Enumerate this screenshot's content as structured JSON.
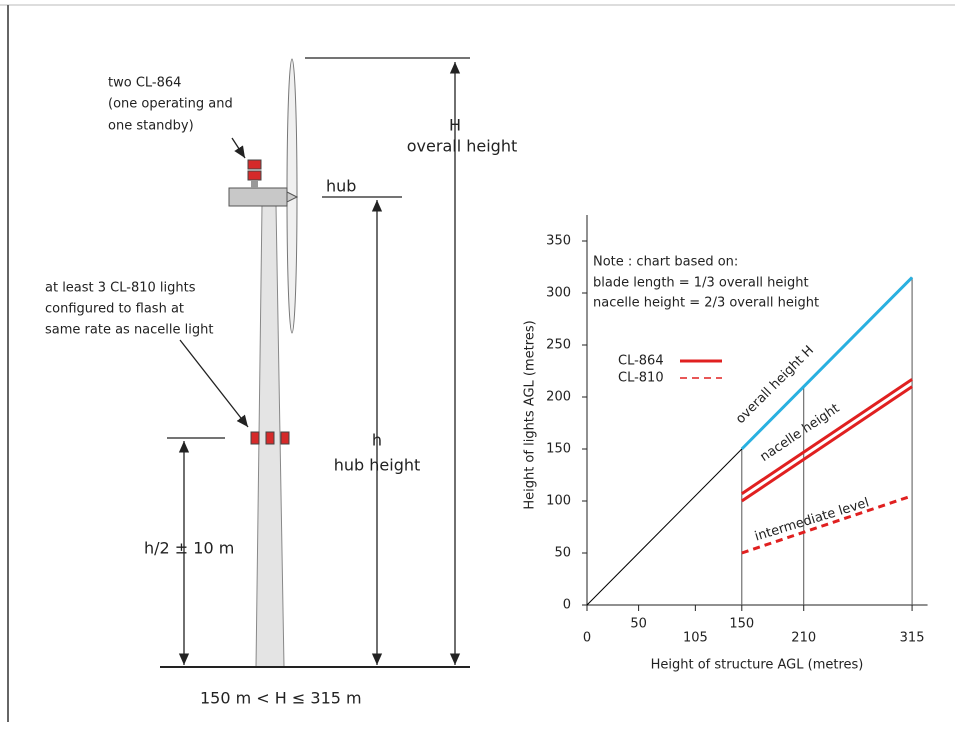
{
  "diagram": {
    "nacelle_light_label": [
      "two CL-864",
      "(one operating and",
      "one standby)"
    ],
    "tower_light_label": [
      "at least 3 CL-810 lights",
      "configured to flash at",
      "same rate as nacelle light"
    ],
    "hub_label": "hub",
    "overall_symbol": "H",
    "overall_label": "overall height",
    "hub_symbol": "h",
    "hub_height_label": "hub height",
    "half_label": "h/2 ± 10 m",
    "range_label": "150 m < H ≤ 315 m"
  },
  "chart_data": {
    "type": "line",
    "xlabel": "Height of structure AGL (metres)",
    "ylabel": "Height of lights AGL (metres)",
    "note": [
      "Note : chart based on:",
      "blade length = 1/3 overall height",
      "nacelle height = 2/3 overall height"
    ],
    "annotations": [
      "overall height  H",
      "nacelle height",
      "intermediate level"
    ],
    "xlim": [
      0,
      330
    ],
    "ylim": [
      0,
      375
    ],
    "xticks": [
      0,
      50,
      105,
      150,
      210,
      315
    ],
    "yticks": [
      0,
      50,
      100,
      150,
      200,
      250,
      300,
      350
    ],
    "vlines": [
      150,
      210,
      315
    ],
    "series": [
      {
        "color": "#000000",
        "x": [
          0,
          150
        ],
        "values": [
          0,
          150
        ]
      },
      {
        "color": "#29b0e0",
        "x": [
          150,
          315
        ],
        "values": [
          150,
          315
        ]
      },
      {
        "name": "CL-864",
        "color": "#e02020",
        "x": [
          150,
          315
        ],
        "values": [
          100,
          210
        ]
      },
      {
        "color": "#e02020",
        "x": [
          150,
          315
        ],
        "values": [
          107,
          217
        ]
      },
      {
        "name": "CL-810",
        "color": "#e02020",
        "dashed": true,
        "x": [
          150,
          315
        ],
        "values": [
          50,
          105
        ]
      }
    ]
  }
}
